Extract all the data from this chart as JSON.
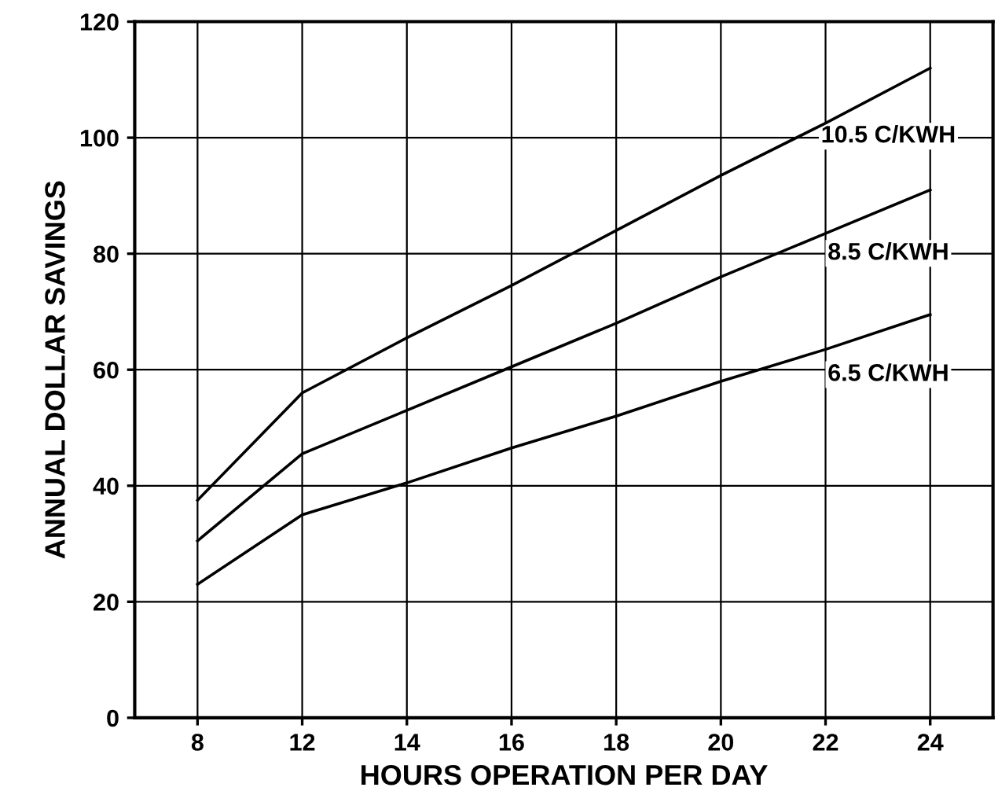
{
  "chart_data": {
    "type": "line",
    "xlabel": "HOURS OPERATION PER DAY",
    "ylabel": "ANNUAL DOLLAR SAVINGS",
    "categories": [
      "8",
      "12",
      "14",
      "16",
      "18",
      "20",
      "22",
      "24"
    ],
    "series": [
      {
        "name": "10.5 C/KWH",
        "color": "#000000",
        "values": [
          37.5,
          56,
          65.5,
          74.5,
          84,
          93.5,
          102.5,
          112
        ]
      },
      {
        "name": "8.5 C/KWH",
        "color": "#000000",
        "values": [
          30.5,
          45.5,
          53,
          60.5,
          68,
          76,
          83.5,
          91
        ]
      },
      {
        "name": "6.5 C/KWH",
        "color": "#000000",
        "values": [
          23,
          35,
          40.5,
          46.5,
          52,
          58,
          63.5,
          69.5
        ]
      }
    ],
    "ylim": [
      0,
      120
    ],
    "yticks": [
      0,
      20,
      40,
      60,
      80,
      100,
      120
    ],
    "grid": true,
    "legend": false,
    "marker": "none",
    "line_style": "solid"
  }
}
